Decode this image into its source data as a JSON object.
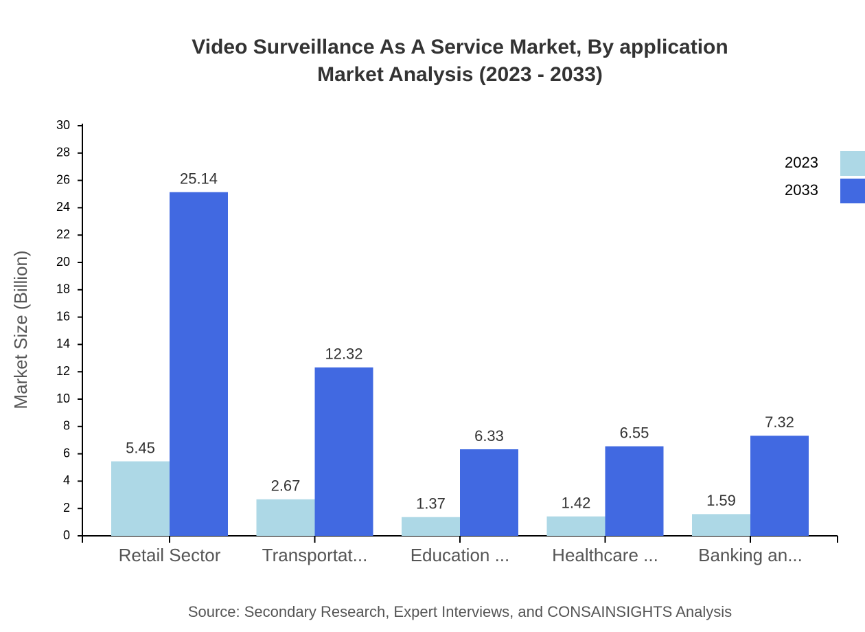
{
  "chart_data": {
    "type": "bar",
    "title": "Video Surveillance As A Service Market, By application",
    "subtitle": "Market Analysis (2023 - 2033)",
    "y_label": "Market Size (Billion)",
    "source": "Source: Secondary Research, Expert Interviews, and CONSAINSIGHTS Analysis",
    "categories": [
      "Retail Sector",
      "Transportat...",
      "Education ...",
      "Healthcare ...",
      "Banking an..."
    ],
    "series": [
      {
        "name": "2023",
        "color": "#add8e6",
        "values": [
          5.45,
          2.67,
          1.37,
          1.42,
          1.59
        ]
      },
      {
        "name": "2033",
        "color": "#4169e1",
        "values": [
          25.14,
          12.32,
          6.33,
          6.55,
          7.32
        ]
      }
    ],
    "ylim": [
      0,
      30
    ],
    "yticks": [
      0,
      2,
      4,
      6,
      8,
      10,
      12,
      14,
      16,
      18,
      20,
      22,
      24,
      26,
      28,
      30
    ],
    "legend": "top-right"
  }
}
